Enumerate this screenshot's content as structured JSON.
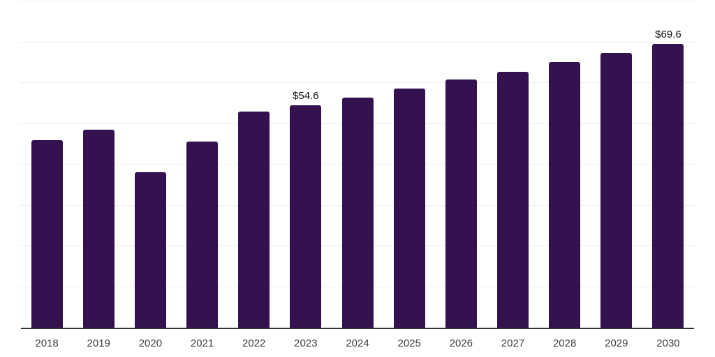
{
  "chart_data": {
    "type": "bar",
    "title": "",
    "xlabel": "",
    "ylabel": "",
    "categories": [
      "2018",
      "2019",
      "2020",
      "2021",
      "2022",
      "2023",
      "2024",
      "2025",
      "2026",
      "2027",
      "2028",
      "2029",
      "2030"
    ],
    "values": [
      46.0,
      48.6,
      38.1,
      45.7,
      53.0,
      54.6,
      56.4,
      58.7,
      60.8,
      62.8,
      65.1,
      67.4,
      69.6
    ],
    "data_labels": [
      "",
      "",
      "",
      "",
      "",
      "$54.6",
      "",
      "",
      "",
      "",
      "",
      "",
      "$69.6"
    ],
    "ylim": [
      0,
      80
    ],
    "gridline_step": 10,
    "grid": "on",
    "legend": "none",
    "bar_color": "#33124f",
    "gridline_color": "#ededed",
    "axis_line_color": "#333333",
    "data_label_color": "#111111",
    "tick_label_color": "#3d3d3d"
  }
}
